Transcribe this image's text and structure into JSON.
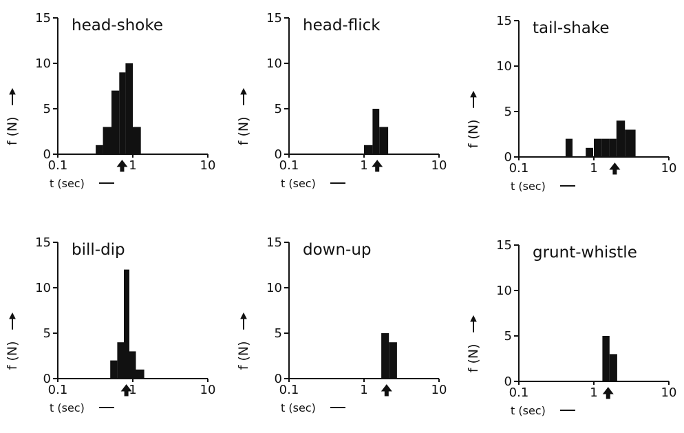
{
  "chart_data": [
    {
      "type": "bar",
      "title": "head-shoke",
      "x_scale": "log",
      "xlim": [
        0.1,
        10
      ],
      "ylim": [
        0,
        15
      ],
      "xticks": [
        "0.1",
        "1",
        "10"
      ],
      "yticks": [
        "0",
        "5",
        "10",
        "15"
      ],
      "xlabel": "t (sec)",
      "ylabel": "f (N)",
      "bins": [
        {
          "x0": 0.32,
          "x1": 0.4,
          "y": 1
        },
        {
          "x0": 0.4,
          "x1": 0.52,
          "y": 3
        },
        {
          "x0": 0.52,
          "x1": 0.66,
          "y": 7
        },
        {
          "x0": 0.66,
          "x1": 0.8,
          "y": 9
        },
        {
          "x0": 0.8,
          "x1": 1.0,
          "y": 10
        },
        {
          "x0": 1.0,
          "x1": 1.28,
          "y": 3
        }
      ],
      "marker_x": 0.72
    },
    {
      "type": "bar",
      "title": "head-flick",
      "x_scale": "log",
      "xlim": [
        0.1,
        10
      ],
      "ylim": [
        0,
        15
      ],
      "xticks": [
        "0.1",
        "1",
        "10"
      ],
      "yticks": [
        "0",
        "5",
        "10",
        "15"
      ],
      "xlabel": "t (sec)",
      "ylabel": "f (N)",
      "bins": [
        {
          "x0": 1.0,
          "x1": 1.3,
          "y": 1
        },
        {
          "x0": 1.3,
          "x1": 1.6,
          "y": 5
        },
        {
          "x0": 1.6,
          "x1": 2.1,
          "y": 3
        }
      ],
      "marker_x": 1.5
    },
    {
      "type": "bar",
      "title": "tail-shake",
      "x_scale": "log",
      "xlim": [
        0.1,
        10
      ],
      "ylim": [
        0,
        15
      ],
      "xticks": [
        "0.1",
        "1",
        "10"
      ],
      "yticks": [
        "0",
        "5",
        "10",
        "15"
      ],
      "xlabel": "t (sec)",
      "ylabel": "f (N)",
      "bins": [
        {
          "x0": 0.42,
          "x1": 0.52,
          "y": 2
        },
        {
          "x0": 0.78,
          "x1": 0.98,
          "y": 1
        },
        {
          "x0": 1.0,
          "x1": 1.28,
          "y": 2
        },
        {
          "x0": 1.28,
          "x1": 1.6,
          "y": 2
        },
        {
          "x0": 1.6,
          "x1": 2.0,
          "y": 2
        },
        {
          "x0": 2.0,
          "x1": 2.6,
          "y": 4
        },
        {
          "x0": 2.6,
          "x1": 3.6,
          "y": 3
        }
      ],
      "marker_x": 1.9
    },
    {
      "type": "bar",
      "title": "bill-dip",
      "x_scale": "log",
      "xlim": [
        0.1,
        10
      ],
      "ylim": [
        0,
        15
      ],
      "xticks": [
        "0.1",
        "1",
        "10"
      ],
      "yticks": [
        "0",
        "5",
        "10",
        "15"
      ],
      "xlabel": "t (sec)",
      "ylabel": "f (N)",
      "bins": [
        {
          "x0": 0.5,
          "x1": 0.62,
          "y": 2
        },
        {
          "x0": 0.62,
          "x1": 0.76,
          "y": 4
        },
        {
          "x0": 0.76,
          "x1": 0.9,
          "y": 12
        },
        {
          "x0": 0.9,
          "x1": 1.1,
          "y": 3
        },
        {
          "x0": 1.1,
          "x1": 1.42,
          "y": 1
        }
      ],
      "marker_x": 0.82
    },
    {
      "type": "bar",
      "title": "down-up",
      "x_scale": "log",
      "xlim": [
        0.1,
        10
      ],
      "ylim": [
        0,
        15
      ],
      "xticks": [
        "0.1",
        "1",
        "10"
      ],
      "yticks": [
        "0",
        "5",
        "10",
        "15"
      ],
      "xlabel": "t (sec)",
      "ylabel": "f (N)",
      "bins": [
        {
          "x0": 1.7,
          "x1": 2.15,
          "y": 5
        },
        {
          "x0": 2.15,
          "x1": 2.75,
          "y": 4
        }
      ],
      "marker_x": 2.0
    },
    {
      "type": "bar",
      "title": "grunt-whistle",
      "x_scale": "log",
      "xlim": [
        0.1,
        10
      ],
      "ylim": [
        0,
        15
      ],
      "xticks": [
        "0.1",
        "1",
        "10"
      ],
      "yticks": [
        "0",
        "5",
        "10",
        "15"
      ],
      "xlabel": "t (sec)",
      "ylabel": "f (N)",
      "bins": [
        {
          "x0": 1.3,
          "x1": 1.62,
          "y": 5
        },
        {
          "x0": 1.62,
          "x1": 2.05,
          "y": 3
        }
      ],
      "marker_x": 1.55
    }
  ]
}
